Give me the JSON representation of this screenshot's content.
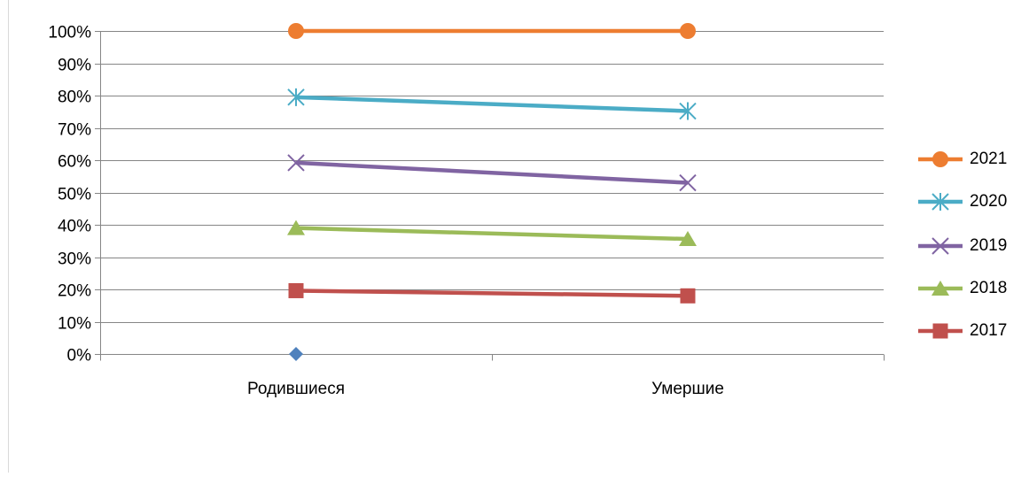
{
  "chart_data": {
    "type": "line",
    "categories": [
      "Родившиеся",
      "Умершие"
    ],
    "y_ticks": [
      "100%",
      "90%",
      "80%",
      "70%",
      "60%",
      "50%",
      "40%",
      "30%",
      "20%",
      "10%",
      "0%"
    ],
    "ylim": [
      0,
      100
    ],
    "grid": true,
    "legend_position": "right",
    "series": [
      {
        "name": "2021",
        "values": [
          100,
          100
        ],
        "color": "#ED7D31",
        "marker": "circle"
      },
      {
        "name": "2020",
        "values": [
          79.5,
          75.2
        ],
        "color": "#4BACC6",
        "marker": "star"
      },
      {
        "name": "2019",
        "values": [
          59.2,
          53
        ],
        "color": "#8064A2",
        "marker": "x"
      },
      {
        "name": "2018",
        "values": [
          39,
          35.6
        ],
        "color": "#9BBB59",
        "marker": "triangle"
      },
      {
        "name": "2017",
        "values": [
          19.6,
          18
        ],
        "color": "#C0504D",
        "marker": "square"
      },
      {
        "values": [
          0,
          null
        ],
        "color": "#4F81BD",
        "marker": "diamond"
      }
    ]
  }
}
